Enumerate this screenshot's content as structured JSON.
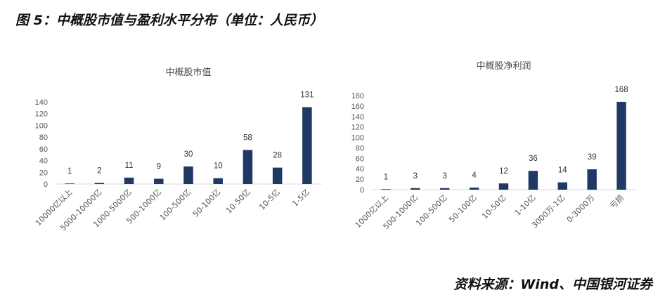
{
  "figure_title": "图 5：中概股市值与盈利水平分布（单位：人民币）",
  "source": "资料来源：Wind、中国银河证券",
  "colors": {
    "bar": "#1f3864",
    "axis": "#d9d9d9",
    "text": "#555555"
  },
  "chart_data": [
    {
      "type": "bar",
      "title": "中概股市值",
      "categories": [
        "10000亿以上",
        "5000-10000亿",
        "1000-5000亿",
        "500-1000亿",
        "100-500亿",
        "50-100亿",
        "10-50亿",
        "10-5亿",
        "1-5亿"
      ],
      "values": [
        1,
        2,
        11,
        9,
        30,
        10,
        58,
        28,
        131
      ],
      "ylim": [
        0,
        140
      ],
      "yticks": [
        0,
        20,
        40,
        60,
        80,
        100,
        120,
        140
      ],
      "grid": false,
      "data_labels": true
    },
    {
      "type": "bar",
      "title": "中概股净利润",
      "categories": [
        "1000亿以上",
        "500-1000亿",
        "100-500亿",
        "50-100亿",
        "10-50亿",
        "1-10亿",
        "3000万-1亿",
        "0-3000万",
        "亏损"
      ],
      "values": [
        1,
        3,
        3,
        4,
        12,
        36,
        14,
        39,
        168
      ],
      "ylim": [
        0,
        180
      ],
      "yticks": [
        0,
        20,
        40,
        60,
        80,
        100,
        120,
        140,
        160,
        180
      ],
      "grid": false,
      "data_labels": true
    }
  ]
}
